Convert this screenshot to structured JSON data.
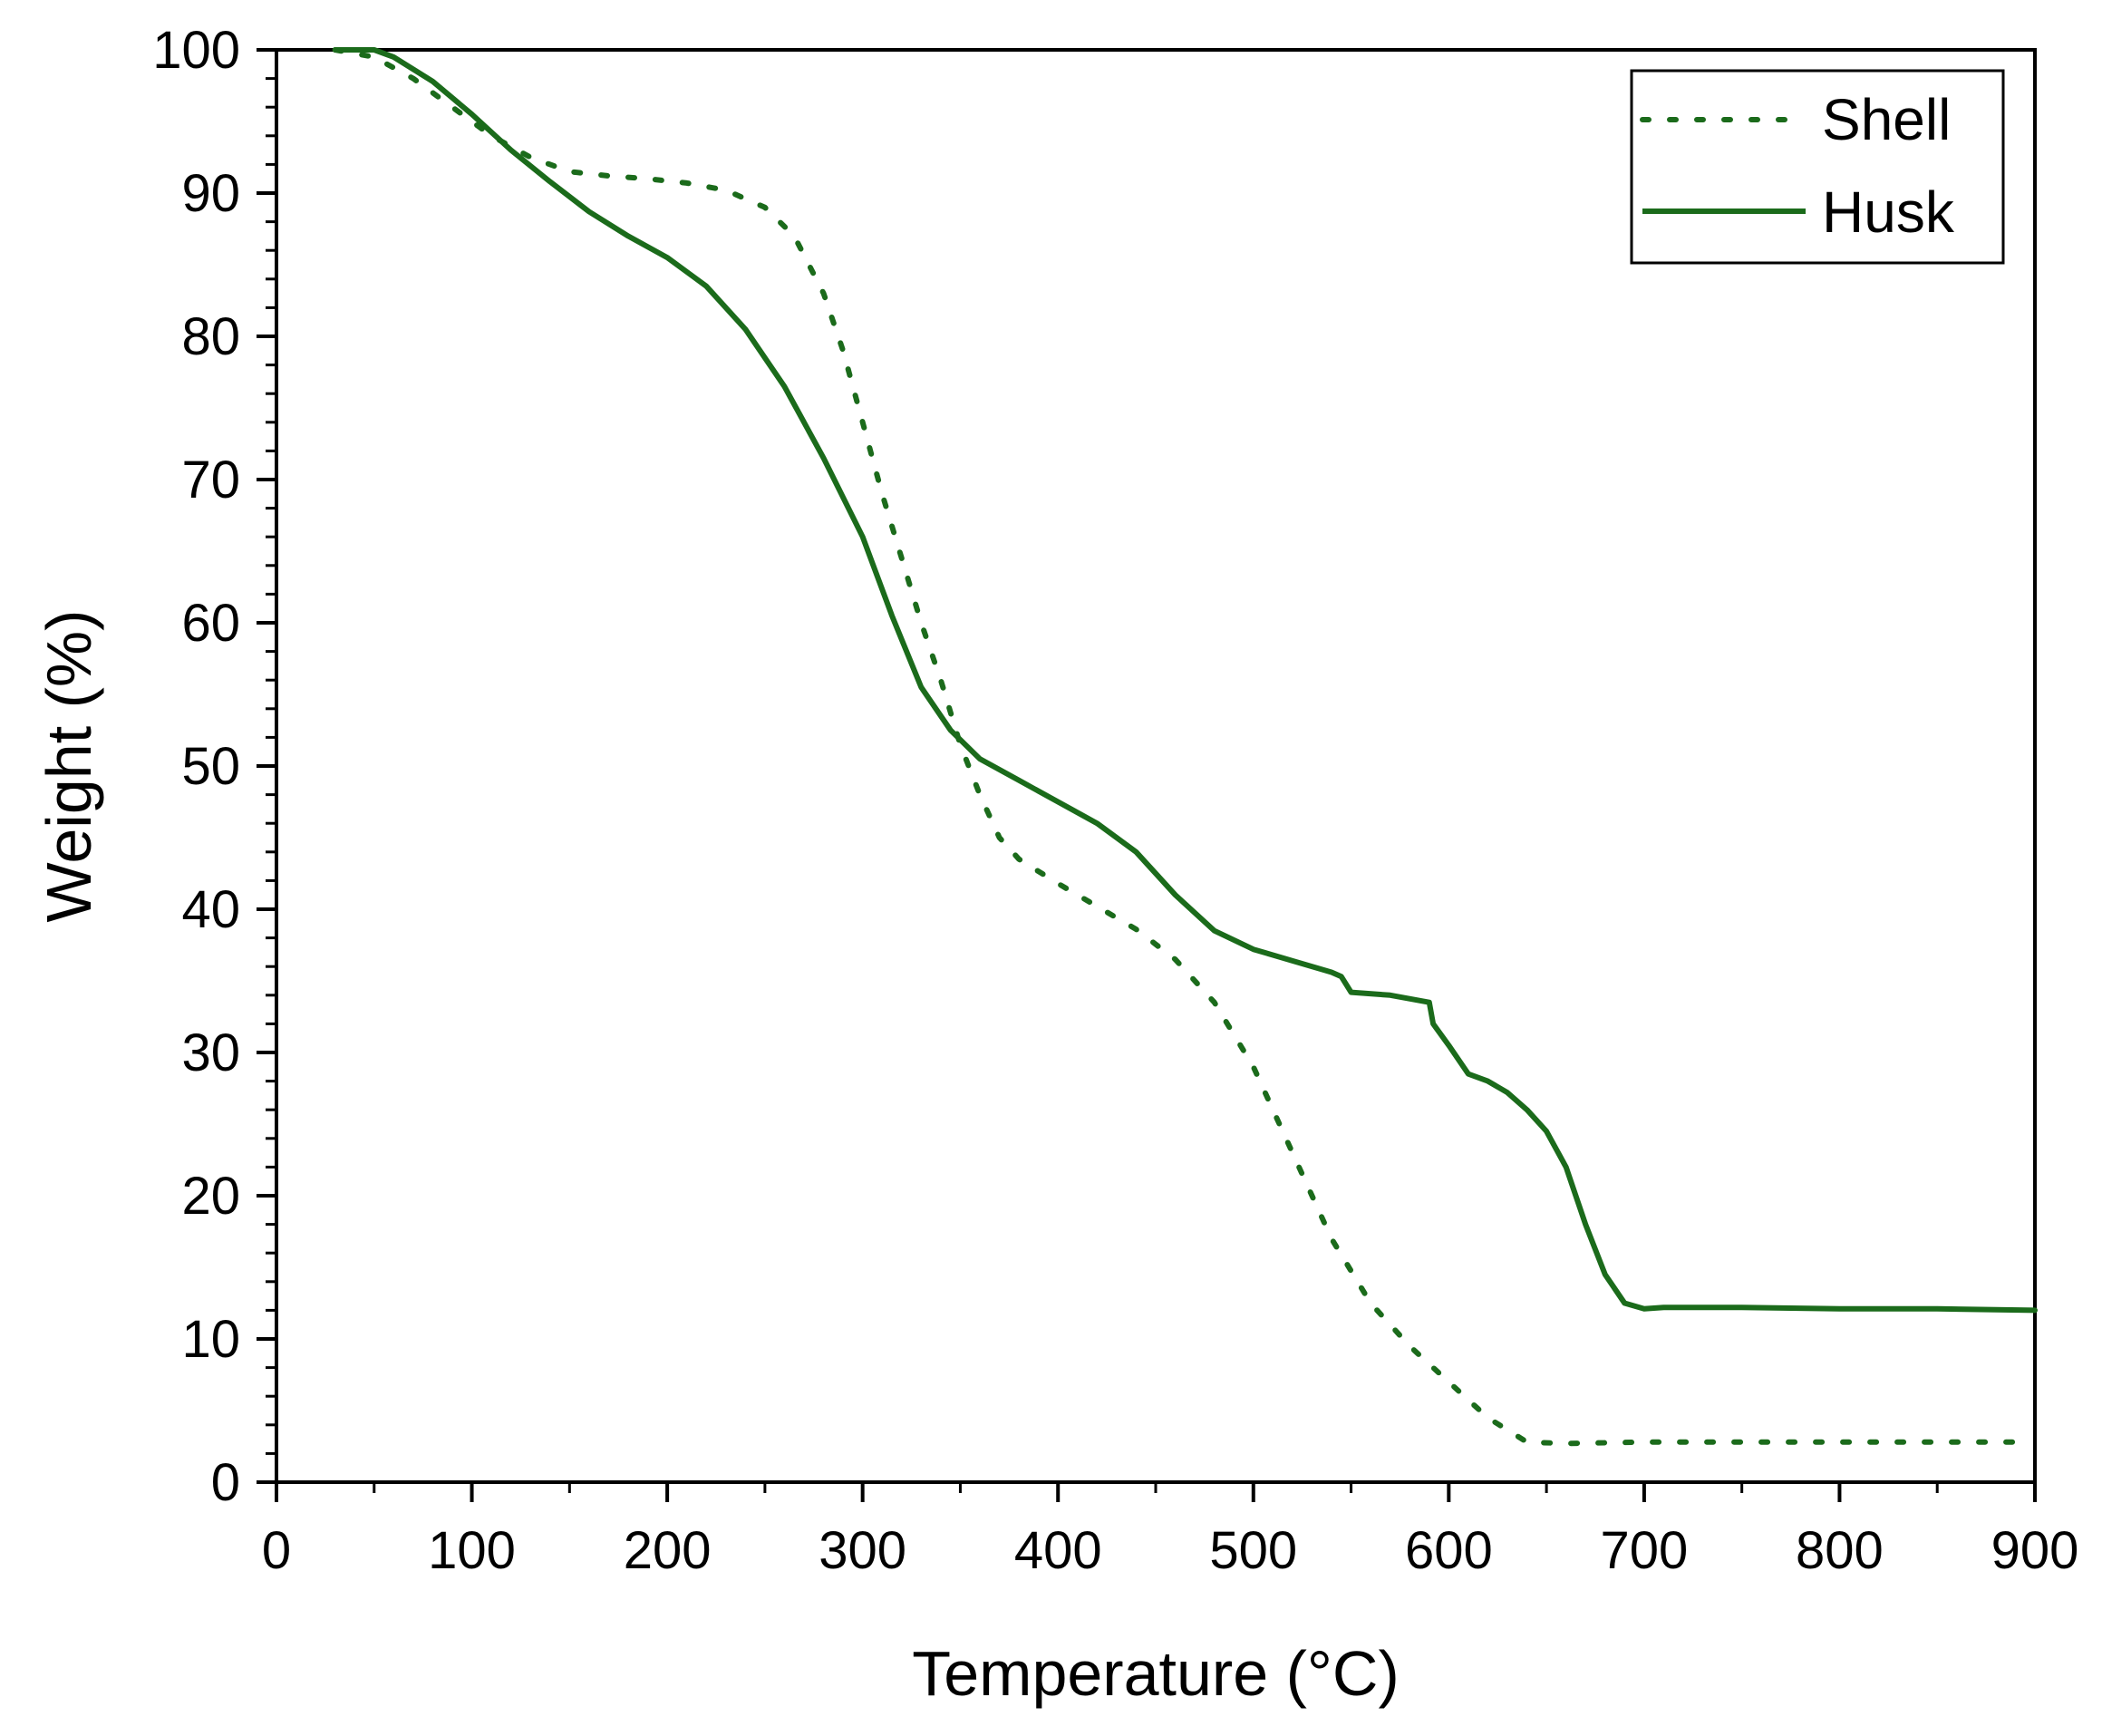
{
  "chart_data": {
    "type": "line",
    "title": "",
    "xlabel": "Temperature (°C)",
    "ylabel": "Weight (%)",
    "xlim": [
      0,
      900
    ],
    "ylim": [
      0,
      100
    ],
    "xticks": [
      0,
      100,
      200,
      300,
      400,
      500,
      600,
      700,
      800,
      900
    ],
    "yticks": [
      0,
      10,
      20,
      30,
      40,
      50,
      60,
      70,
      80,
      90,
      100
    ],
    "grid": false,
    "legend_position": "top-right",
    "line_color": "#1b6b1b",
    "series": [
      {
        "name": "Shell",
        "style": "dotted",
        "x": [
          30,
          50,
          70,
          90,
          110,
          130,
          150,
          170,
          190,
          210,
          230,
          250,
          265,
          280,
          290,
          300,
          310,
          320,
          330,
          340,
          350,
          360,
          370,
          380,
          400,
          420,
          440,
          460,
          480,
          500,
          520,
          540,
          560,
          580,
          600,
          620,
          640,
          660,
          700,
          750,
          800,
          850,
          890
        ],
        "y": [
          100,
          99.5,
          98,
          96,
          94,
          92.5,
          91.5,
          91.2,
          91,
          90.7,
          90.2,
          89,
          87,
          83,
          79,
          74,
          69,
          64.5,
          60,
          56,
          51.5,
          48,
          45,
          43.5,
          41.8,
          40.2,
          38.6,
          36.5,
          33.5,
          29,
          23,
          17,
          12.5,
          9.5,
          7,
          4.5,
          2.8,
          2.7,
          2.8,
          2.8,
          2.8,
          2.8,
          2.8
        ]
      },
      {
        "name": "Husk",
        "style": "solid",
        "x": [
          30,
          50,
          60,
          80,
          100,
          120,
          140,
          160,
          180,
          200,
          220,
          240,
          260,
          280,
          300,
          315,
          330,
          345,
          360,
          380,
          400,
          420,
          440,
          460,
          480,
          500,
          520,
          540,
          545,
          550,
          570,
          590,
          592,
          600,
          610,
          620,
          630,
          640,
          650,
          660,
          670,
          680,
          690,
          700,
          710,
          750,
          800,
          850,
          900
        ],
        "y": [
          100,
          100,
          99.5,
          97.8,
          95.5,
          93,
          90.8,
          88.7,
          87,
          85.5,
          83.5,
          80.5,
          76.5,
          71.5,
          66,
          60.5,
          55.5,
          52.5,
          50.5,
          49,
          47.5,
          46,
          44,
          41,
          38.5,
          37.2,
          36.4,
          35.6,
          35.3,
          34.2,
          34,
          33.5,
          32,
          30.5,
          28.5,
          28,
          27.2,
          26,
          24.5,
          22,
          18,
          14.5,
          12.5,
          12.1,
          12.2,
          12.2,
          12.1,
          12.1,
          12
        ]
      }
    ]
  }
}
